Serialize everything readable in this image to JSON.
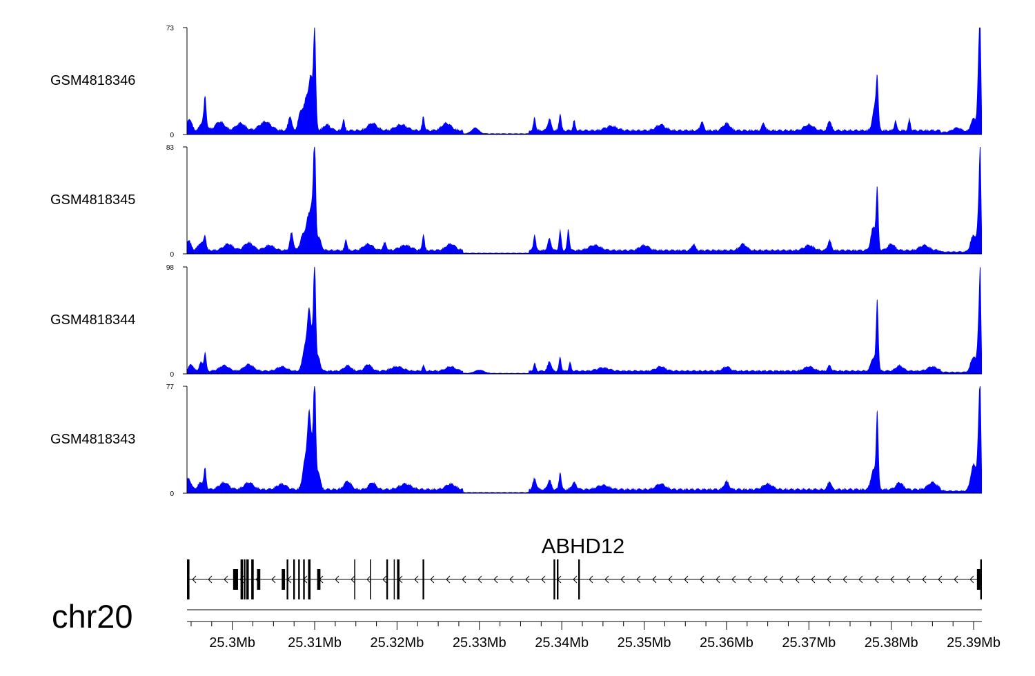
{
  "chart_data": {
    "type": "area",
    "chromosome": "chr20",
    "xlim": [
      25.2945,
      25.391
    ],
    "xunit": "Mb",
    "tick_values": [
      25.3,
      25.31,
      25.32,
      25.33,
      25.34,
      25.35,
      25.36,
      25.37,
      25.38,
      25.39
    ],
    "tick_labels": [
      "25.3Mb",
      "25.31Mb",
      "25.32Mb",
      "25.33Mb",
      "25.34Mb",
      "25.35Mb",
      "25.36Mb",
      "25.37Mb",
      "25.38Mb",
      "25.39Mb"
    ],
    "fill_color": "#0000ff",
    "tracks": [
      {
        "name": "GSM4818346",
        "ymin": 0,
        "ymax": 73,
        "ymin_label": "0",
        "ymax_label": "73",
        "baseline": 4,
        "peaks": [
          [
            25.2948,
            8,
            0.0004
          ],
          [
            25.2965,
            7,
            0.0005
          ],
          [
            25.2967,
            18,
            0.0002
          ],
          [
            25.2985,
            6,
            0.0008
          ],
          [
            25.301,
            5,
            0.0008
          ],
          [
            25.304,
            6,
            0.001
          ],
          [
            25.307,
            10,
            0.0003
          ],
          [
            25.3083,
            13,
            0.0004
          ],
          [
            25.309,
            22,
            0.0004
          ],
          [
            25.3095,
            25,
            0.0003
          ],
          [
            25.3098,
            14,
            0.0004
          ],
          [
            25.31,
            66,
            0.0002
          ],
          [
            25.3115,
            4,
            0.0006
          ],
          [
            25.3135,
            8,
            0.0002
          ],
          [
            25.317,
            5,
            0.0008
          ],
          [
            25.3205,
            4,
            0.001
          ],
          [
            25.3232,
            10,
            0.0002
          ],
          [
            25.326,
            5,
            0.0008
          ],
          [
            25.3295,
            4,
            0.0006
          ],
          [
            25.3367,
            9,
            0.0002
          ],
          [
            25.3385,
            8,
            0.0003
          ],
          [
            25.3398,
            12,
            0.0002
          ],
          [
            25.3415,
            7,
            0.0002
          ],
          [
            25.346,
            3,
            0.001
          ],
          [
            25.352,
            4,
            0.0008
          ],
          [
            25.357,
            6,
            0.0003
          ],
          [
            25.36,
            5,
            0.0006
          ],
          [
            25.3645,
            5,
            0.0003
          ],
          [
            25.37,
            4,
            0.0008
          ],
          [
            25.3725,
            7,
            0.0003
          ],
          [
            25.378,
            16,
            0.0004
          ],
          [
            25.3783,
            30,
            0.0002
          ],
          [
            25.3805,
            7,
            0.0002
          ],
          [
            25.3822,
            8,
            0.0002
          ],
          [
            25.388,
            3,
            0.0008
          ],
          [
            25.39,
            8,
            0.0005
          ],
          [
            25.3906,
            45,
            0.0002
          ],
          [
            25.3908,
            72,
            0.00015
          ]
        ]
      },
      {
        "name": "GSM4818345",
        "ymin": 0,
        "ymax": 83,
        "ymin_label": "0",
        "ymax_label": "83",
        "baseline": 4,
        "peaks": [
          [
            25.2947,
            8,
            0.0004
          ],
          [
            25.2962,
            6,
            0.0005
          ],
          [
            25.2967,
            10,
            0.0002
          ],
          [
            25.2995,
            5,
            0.0008
          ],
          [
            25.302,
            6,
            0.0008
          ],
          [
            25.3045,
            4,
            0.0008
          ],
          [
            25.3072,
            14,
            0.0003
          ],
          [
            25.3085,
            11,
            0.0004
          ],
          [
            25.3092,
            25,
            0.0004
          ],
          [
            25.3097,
            30,
            0.0003
          ],
          [
            25.31,
            83,
            0.0002
          ],
          [
            25.3105,
            10,
            0.0004
          ],
          [
            25.3138,
            9,
            0.0002
          ],
          [
            25.3165,
            5,
            0.0008
          ],
          [
            25.3185,
            6,
            0.0003
          ],
          [
            25.321,
            4,
            0.001
          ],
          [
            25.3232,
            13,
            0.0002
          ],
          [
            25.3265,
            5,
            0.0008
          ],
          [
            25.3367,
            13,
            0.0002
          ],
          [
            25.3385,
            9,
            0.0003
          ],
          [
            25.3398,
            16,
            0.0002
          ],
          [
            25.3408,
            17,
            0.0002
          ],
          [
            25.344,
            4,
            0.001
          ],
          [
            25.35,
            4,
            0.0008
          ],
          [
            25.356,
            5,
            0.0003
          ],
          [
            25.362,
            5,
            0.0006
          ],
          [
            25.37,
            4,
            0.0008
          ],
          [
            25.3725,
            8,
            0.0003
          ],
          [
            25.3778,
            18,
            0.0004
          ],
          [
            25.3783,
            47,
            0.0002
          ],
          [
            25.38,
            5,
            0.0006
          ],
          [
            25.384,
            4,
            0.0008
          ],
          [
            25.39,
            12,
            0.0005
          ],
          [
            25.3906,
            30,
            0.0002
          ],
          [
            25.3908,
            83,
            0.00015
          ]
        ]
      },
      {
        "name": "GSM4818344",
        "ymin": 0,
        "ymax": 98,
        "ymin_label": "0",
        "ymax_label": "98",
        "baseline": 4,
        "peaks": [
          [
            25.295,
            6,
            0.0004
          ],
          [
            25.2962,
            8,
            0.0003
          ],
          [
            25.2967,
            17,
            0.0002
          ],
          [
            25.299,
            5,
            0.0008
          ],
          [
            25.302,
            6,
            0.0008
          ],
          [
            25.306,
            4,
            0.0008
          ],
          [
            25.3088,
            22,
            0.0004
          ],
          [
            25.3093,
            45,
            0.0003
          ],
          [
            25.3097,
            25,
            0.0004
          ],
          [
            25.31,
            97,
            0.0002
          ],
          [
            25.3105,
            12,
            0.0003
          ],
          [
            25.314,
            5,
            0.0006
          ],
          [
            25.3165,
            6,
            0.0006
          ],
          [
            25.32,
            4,
            0.001
          ],
          [
            25.3232,
            5,
            0.0002
          ],
          [
            25.3265,
            4,
            0.0008
          ],
          [
            25.33,
            3,
            0.0008
          ],
          [
            25.3367,
            7,
            0.0002
          ],
          [
            25.3385,
            9,
            0.0003
          ],
          [
            25.3398,
            13,
            0.0002
          ],
          [
            25.341,
            8,
            0.0002
          ],
          [
            25.345,
            3,
            0.001
          ],
          [
            25.352,
            4,
            0.0008
          ],
          [
            25.36,
            4,
            0.0006
          ],
          [
            25.37,
            4,
            0.0008
          ],
          [
            25.3725,
            5,
            0.0003
          ],
          [
            25.3778,
            12,
            0.0004
          ],
          [
            25.3783,
            65,
            0.0002
          ],
          [
            25.381,
            5,
            0.0006
          ],
          [
            25.385,
            4,
            0.0008
          ],
          [
            25.39,
            13,
            0.0005
          ],
          [
            25.3906,
            40,
            0.0002
          ],
          [
            25.3908,
            87,
            0.00015
          ]
        ]
      },
      {
        "name": "GSM4818343",
        "ymin": 0,
        "ymax": 77,
        "ymin_label": "0",
        "ymax_label": "77",
        "baseline": 4,
        "peaks": [
          [
            25.2947,
            8,
            0.0004
          ],
          [
            25.2962,
            5,
            0.0005
          ],
          [
            25.2967,
            14,
            0.0002
          ],
          [
            25.299,
            5,
            0.0008
          ],
          [
            25.302,
            5,
            0.0008
          ],
          [
            25.306,
            4,
            0.0008
          ],
          [
            25.3088,
            20,
            0.0004
          ],
          [
            25.3093,
            44,
            0.0003
          ],
          [
            25.3097,
            25,
            0.0004
          ],
          [
            25.31,
            77,
            0.0002
          ],
          [
            25.3105,
            12,
            0.0003
          ],
          [
            25.314,
            6,
            0.0006
          ],
          [
            25.317,
            5,
            0.0006
          ],
          [
            25.321,
            4,
            0.001
          ],
          [
            25.3265,
            4,
            0.0008
          ],
          [
            25.3367,
            8,
            0.0003
          ],
          [
            25.3385,
            7,
            0.0003
          ],
          [
            25.3398,
            13,
            0.0002
          ],
          [
            25.3415,
            5,
            0.0004
          ],
          [
            25.345,
            3,
            0.001
          ],
          [
            25.352,
            4,
            0.0008
          ],
          [
            25.36,
            6,
            0.0004
          ],
          [
            25.365,
            4,
            0.0008
          ],
          [
            25.3725,
            6,
            0.0003
          ],
          [
            25.3778,
            14,
            0.0004
          ],
          [
            25.3783,
            56,
            0.0002
          ],
          [
            25.381,
            5,
            0.0006
          ],
          [
            25.385,
            5,
            0.0008
          ],
          [
            25.39,
            18,
            0.0005
          ],
          [
            25.3906,
            40,
            0.0002
          ],
          [
            25.3908,
            75,
            0.00015
          ]
        ]
      }
    ],
    "gene": {
      "name": "ABHD12",
      "strand": "-",
      "start": 25.2945,
      "end": 25.3909,
      "exons": [
        [
          25.2945,
          25.2948
        ],
        [
          25.3001,
          25.3007
        ],
        [
          25.301,
          25.3013
        ],
        [
          25.3014,
          25.3016
        ],
        [
          25.3017,
          25.302
        ],
        [
          25.3023,
          25.3026
        ],
        [
          25.303,
          25.3034
        ],
        [
          25.306,
          25.3064
        ],
        [
          25.3066,
          25.3068
        ],
        [
          25.3074,
          25.3076
        ],
        [
          25.308,
          25.3082
        ],
        [
          25.3086,
          25.3088
        ],
        [
          25.3092,
          25.3095
        ],
        [
          25.3103,
          25.3107
        ],
        [
          25.3148,
          25.3149
        ],
        [
          25.3167,
          25.3168
        ],
        [
          25.3187,
          25.3189
        ],
        [
          25.3196,
          25.3197
        ],
        [
          25.32,
          25.3203
        ],
        [
          25.3231,
          25.3233
        ],
        [
          25.339,
          25.3392
        ],
        [
          25.3394,
          25.3396
        ],
        [
          25.342,
          25.3422
        ],
        [
          25.3904,
          25.3908
        ],
        [
          25.3908,
          25.391
        ]
      ]
    }
  }
}
